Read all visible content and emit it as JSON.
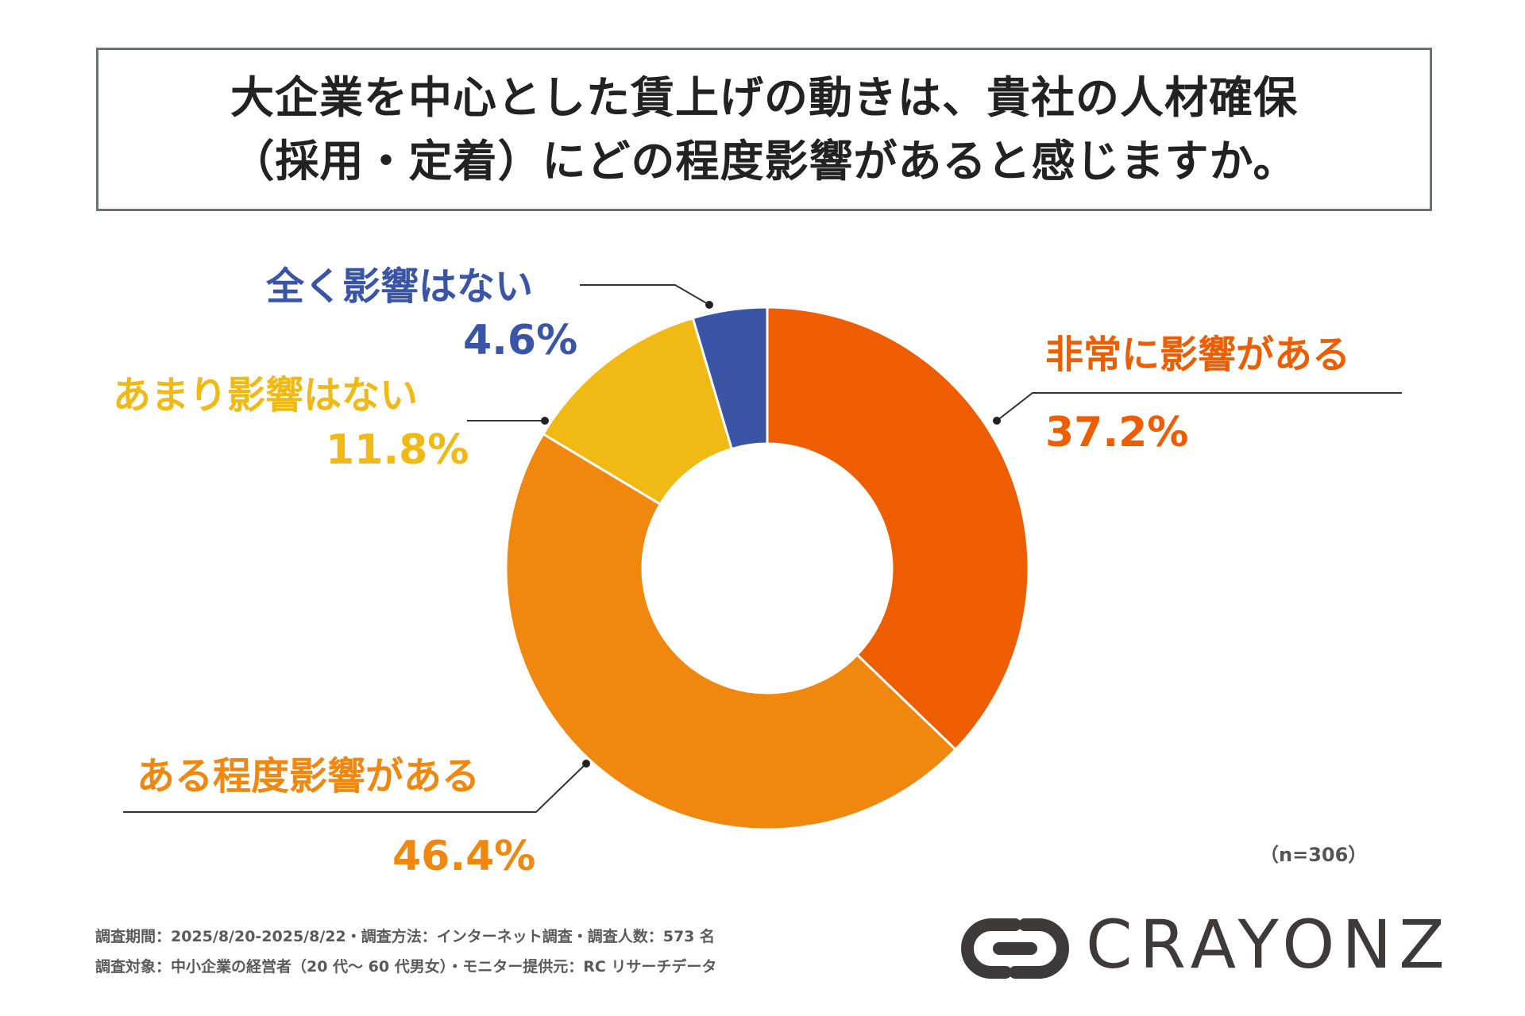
{
  "title": {
    "line1": "大企業を中心とした賃上げの動きは、貴社の人材確保",
    "line2": "（採用・定着）にどの程度影響があると感じますか。"
  },
  "chart_data": {
    "type": "pie",
    "donut": true,
    "slices": [
      {
        "label": "非常に影響がある",
        "value": 37.2,
        "value_label": "37.2%",
        "color": "#ee5e00"
      },
      {
        "label": "ある程度影響がある",
        "value": 46.4,
        "value_label": "46.4%",
        "color": "#f0870f"
      },
      {
        "label": "あまり影響はない",
        "value": 11.8,
        "value_label": "11.8%",
        "color": "#f0b913"
      },
      {
        "label": "全く影響はない",
        "value": 4.6,
        "value_label": "4.6%",
        "color": "#3a55a6"
      }
    ],
    "sample_note": "（n=306）"
  },
  "footer": {
    "line1": "調査期間：2025/8/20-2025/8/22・調査方法：インターネット調査・調査人数：573 名",
    "line2": "調査対象：中小企業の経営者（20 代〜 60 代男女）・モニター提供元：RC リサーチデータ"
  },
  "logo": {
    "text": "CRAYONZ",
    "icon": "crayonz-logo-mark",
    "color": "#3e3a39"
  }
}
